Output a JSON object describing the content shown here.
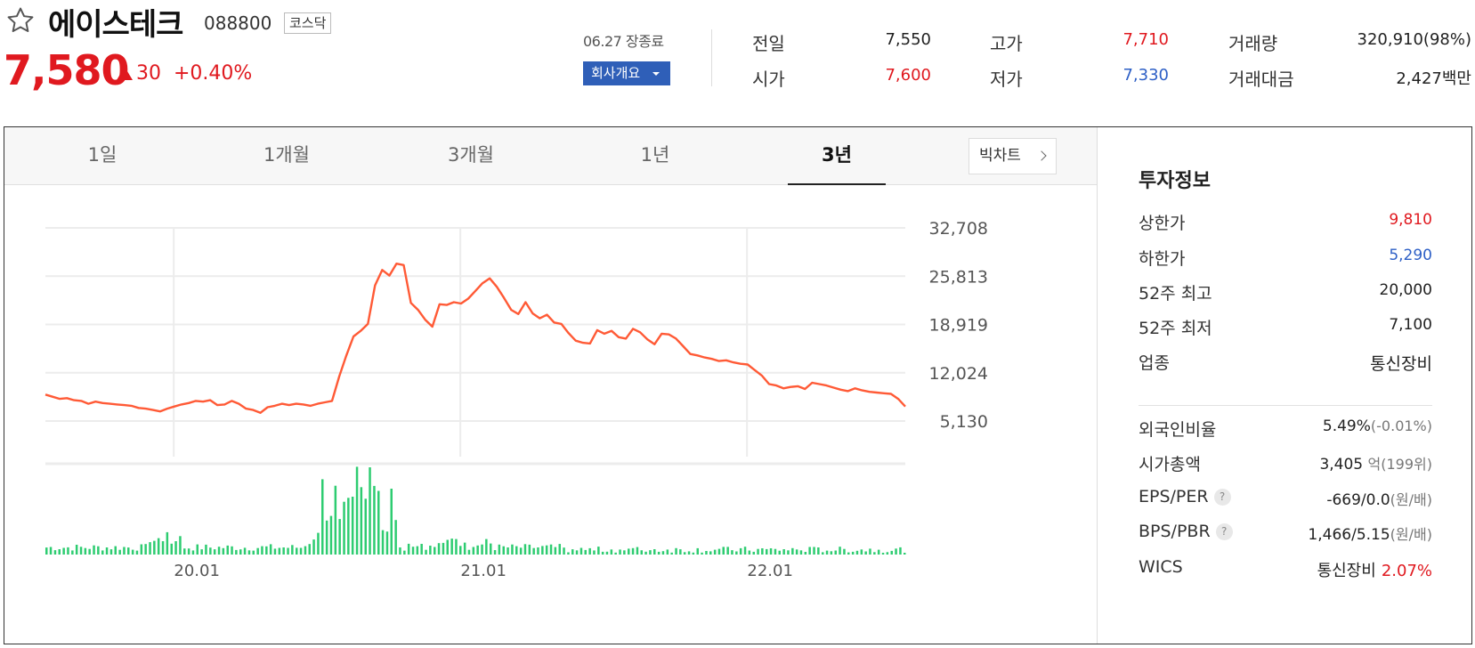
{
  "header": {
    "stock_name": "에이스테크",
    "stock_code": "088800",
    "market": "코스닥",
    "price": "7,580",
    "change_amount": "30",
    "change_percent": "+0.40%",
    "date_status": "06.27 장종료",
    "company_button": "회사개요",
    "icons": {
      "favorite": "star-outline-icon",
      "up": "triangle-up-icon",
      "dropdown": "caret-down-icon"
    }
  },
  "quote": {
    "prev_close": {
      "label": "전일",
      "value": "7,550"
    },
    "open": {
      "label": "시가",
      "value": "7,600"
    },
    "high": {
      "label": "고가",
      "value": "7,710"
    },
    "low": {
      "label": "저가",
      "value": "7,330"
    },
    "volume": {
      "label": "거래량",
      "value": "320,910(98%)"
    },
    "trade_value": {
      "label": "거래대금",
      "value": "2,427",
      "unit": "백만"
    }
  },
  "chart": {
    "tabs": [
      "1일",
      "1개월",
      "3개월",
      "1년",
      "3년"
    ],
    "active_tab": "3년",
    "bigchart_label": "빅차트"
  },
  "chart_data": {
    "type": "line",
    "ylim": [
      5130,
      32708
    ],
    "yticks": [
      "32,708",
      "25,813",
      "18,919",
      "12,024",
      "5,130"
    ],
    "xticks": [
      "20.01",
      "21.01",
      "22.01"
    ],
    "x_domain": [
      0,
      36
    ],
    "xtick_positions": [
      5,
      17,
      29
    ],
    "series": [
      {
        "x": [
          0,
          0.3,
          0.6,
          0.9,
          1.2,
          1.5,
          1.8,
          2.1,
          2.4,
          2.7,
          3,
          3.3,
          3.6,
          3.9,
          4.2,
          4.5,
          4.8,
          5.1,
          5.4,
          5.7,
          6,
          6.3,
          6.6,
          6.9,
          7.2,
          7.5,
          7.8,
          8.1,
          8.4,
          8.7,
          9,
          9.3,
          9.6,
          9.9,
          10.2,
          10.5,
          10.8,
          11.1,
          11.4,
          11.7,
          12,
          12.3,
          12.6,
          12.9,
          13.2,
          13.5,
          13.8,
          14.1,
          14.4,
          14.7,
          15,
          15.3,
          15.6,
          15.9,
          16.2,
          16.5,
          16.8,
          17.1,
          17.4,
          17.7,
          18,
          18.3,
          18.6,
          18.9,
          19.2,
          19.5,
          19.8,
          20.1,
          20.4,
          20.7,
          21,
          21.3,
          21.6,
          21.9,
          22.2,
          22.5,
          22.8,
          23.1,
          23.4,
          23.7,
          24,
          24.3,
          24.6,
          24.9,
          25.2,
          25.5,
          25.8,
          26.1,
          26.4,
          26.7,
          27,
          27.3,
          27.6,
          27.9,
          28.2,
          28.5,
          28.8,
          29.1,
          29.4,
          29.7,
          30,
          30.3,
          30.6,
          30.9,
          31.2,
          31.5,
          31.8,
          32.1,
          32.4,
          32.7,
          33,
          33.3,
          33.6,
          33.9,
          34.2,
          34.5,
          34.8,
          35.1,
          35.4,
          35.7,
          36
        ],
        "values": [
          8900,
          8600,
          8300,
          8400,
          8100,
          8000,
          7600,
          7900,
          7700,
          7600,
          7500,
          7400,
          7300,
          7000,
          6900,
          6700,
          6500,
          6900,
          7200,
          7500,
          7700,
          8000,
          7900,
          8100,
          7400,
          7500,
          8000,
          7600,
          6900,
          6700,
          6300,
          7100,
          7300,
          7600,
          7400,
          7600,
          7500,
          7300,
          7600,
          7800,
          8000,
          11500,
          14500,
          17200,
          18000,
          19000,
          24500,
          26700,
          25900,
          27600,
          27400,
          22000,
          21000,
          19600,
          18600,
          21800,
          21700,
          22100,
          21900,
          22600,
          23700,
          24800,
          25500,
          24300,
          22700,
          21000,
          20400,
          22100,
          20500,
          19800,
          20300,
          19200,
          19000,
          17700,
          16600,
          16300,
          16200,
          18100,
          17600,
          18000,
          17100,
          16900,
          18300,
          17800,
          16800,
          16100,
          17600,
          17500,
          16900,
          15800,
          14700,
          14500,
          14200,
          14000,
          13700,
          13800,
          13500,
          13300,
          13200,
          12400,
          11600,
          10400,
          10200,
          9800,
          10000,
          10100,
          9700,
          10600,
          10400,
          10200,
          9900,
          9600,
          9400,
          9800,
          9500,
          9300,
          9200,
          9100,
          9000,
          8300,
          7200
        ]
      },
      {
        "name": "volume",
        "bars_count": 200
      }
    ]
  },
  "investment": {
    "title": "투자정보",
    "upper_limit": {
      "label": "상한가",
      "value": "9,810"
    },
    "lower_limit": {
      "label": "하한가",
      "value": "5,290"
    },
    "high_52w": {
      "label": "52주 최고",
      "value": "20,000"
    },
    "low_52w": {
      "label": "52주 최저",
      "value": "7,100"
    },
    "sector": {
      "label": "업종",
      "value": "통신장비"
    },
    "foreign_ratio": {
      "label": "외국인비율",
      "value": "5.49%",
      "sub": "(-0.01%)"
    },
    "market_cap": {
      "label": "시가총액",
      "value": "3,405",
      "unit": "억",
      "sub": "(199위)"
    },
    "eps_per": {
      "label": "EPS/PER",
      "value": "-669/0.0",
      "sub": "(원/배)"
    },
    "bps_pbr": {
      "label": "BPS/PBR",
      "value": "1,466/5.15",
      "sub": "(원/배)"
    },
    "wics": {
      "label": "WICS",
      "sector": "통신장비",
      "percent": "2.07%"
    },
    "help_icon": "?"
  },
  "colors": {
    "up": "#e0191f",
    "down": "#2d5fc6",
    "price_line": "#ff5a36",
    "volume_bar": "#2ecc71",
    "accent_button": "#2f5fb8"
  }
}
